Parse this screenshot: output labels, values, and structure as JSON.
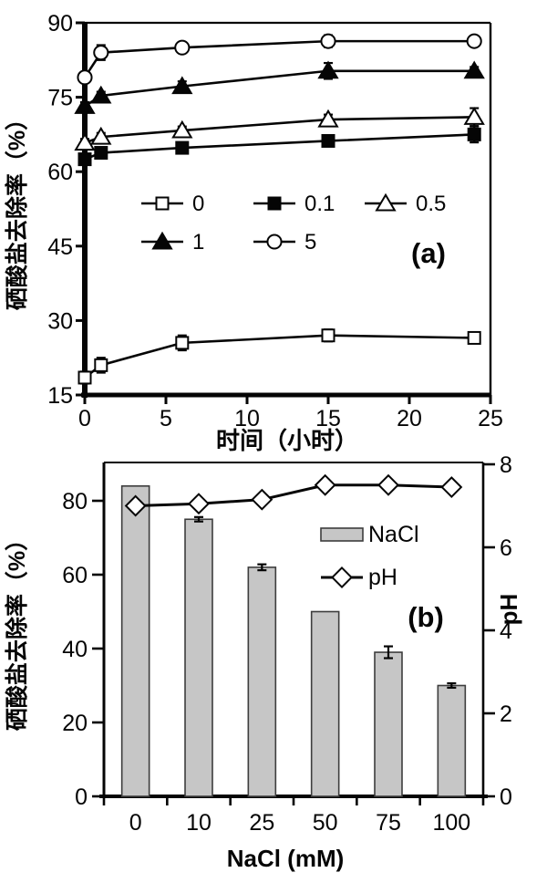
{
  "figure": {
    "background": "#ffffff",
    "ink_color": "#050505",
    "panels": [
      "a",
      "b"
    ]
  },
  "chart_data": [
    {
      "type": "line",
      "panel_label": "(a)",
      "xlabel": "时间（小时）",
      "ylabel": "硒酸盐去除率（%）",
      "xlim": [
        0,
        25
      ],
      "ylim": [
        15,
        90
      ],
      "xticks": [
        0,
        5,
        10,
        15,
        20,
        25
      ],
      "yticks": [
        15,
        30,
        45,
        60,
        75,
        90
      ],
      "grid": false,
      "legend_position": "inside-center",
      "x": [
        0,
        1,
        6,
        15,
        24
      ],
      "series": [
        {
          "name": "0",
          "marker": "square-open",
          "values": [
            18.5,
            21.0,
            25.5,
            27.0,
            26.5
          ],
          "err": [
            1.2,
            1.5,
            1.5,
            1.2,
            1.0
          ]
        },
        {
          "name": "0.1",
          "marker": "square-filled",
          "values": [
            62.5,
            63.8,
            64.8,
            66.2,
            67.5
          ],
          "err": [
            0.8,
            0.8,
            0.8,
            0.8,
            1.6
          ]
        },
        {
          "name": "0.5",
          "marker": "triangle-open",
          "values": [
            65.8,
            67.0,
            68.3,
            70.5,
            71.0
          ],
          "err": [
            0.8,
            0.8,
            0.8,
            1.0,
            1.8
          ]
        },
        {
          "name": "1",
          "marker": "triangle-filled",
          "values": [
            73.2,
            75.3,
            77.2,
            80.3,
            80.3
          ],
          "err": [
            0.8,
            0.8,
            1.0,
            1.6,
            0.8
          ]
        },
        {
          "name": "5",
          "marker": "circle-open",
          "values": [
            79.0,
            84.0,
            85.0,
            86.3,
            86.3
          ],
          "err": [
            0.8,
            1.5,
            1.0,
            1.2,
            0.8
          ]
        }
      ]
    },
    {
      "type": "bar+line",
      "panel_label": "(b)",
      "xlabel": "NaCl (mM)",
      "ylabel_left": "硒酸盐去除率（%）",
      "ylabel_right": "pH",
      "categories": [
        "0",
        "10",
        "25",
        "50",
        "75",
        "100"
      ],
      "ylim_left": [
        0,
        90
      ],
      "ylim_right": [
        0,
        8
      ],
      "yticks_left": [
        0,
        20,
        40,
        60,
        80
      ],
      "yticks_right": [
        0,
        2,
        4,
        6,
        8
      ],
      "grid": false,
      "legend_position": "inside-upper-right",
      "bar_series": {
        "name": "NaCl",
        "color": "#c6c6c6",
        "edge_color": "#3d3d3d",
        "values": [
          84,
          75,
          62,
          50,
          39,
          30
        ],
        "err": [
          0,
          0.6,
          0.8,
          0,
          1.6,
          0.6
        ]
      },
      "line_series": {
        "name": "pH",
        "marker": "diamond-open",
        "color": "#050505",
        "values": [
          7.0,
          7.05,
          7.15,
          7.5,
          7.5,
          7.45
        ]
      }
    }
  ]
}
